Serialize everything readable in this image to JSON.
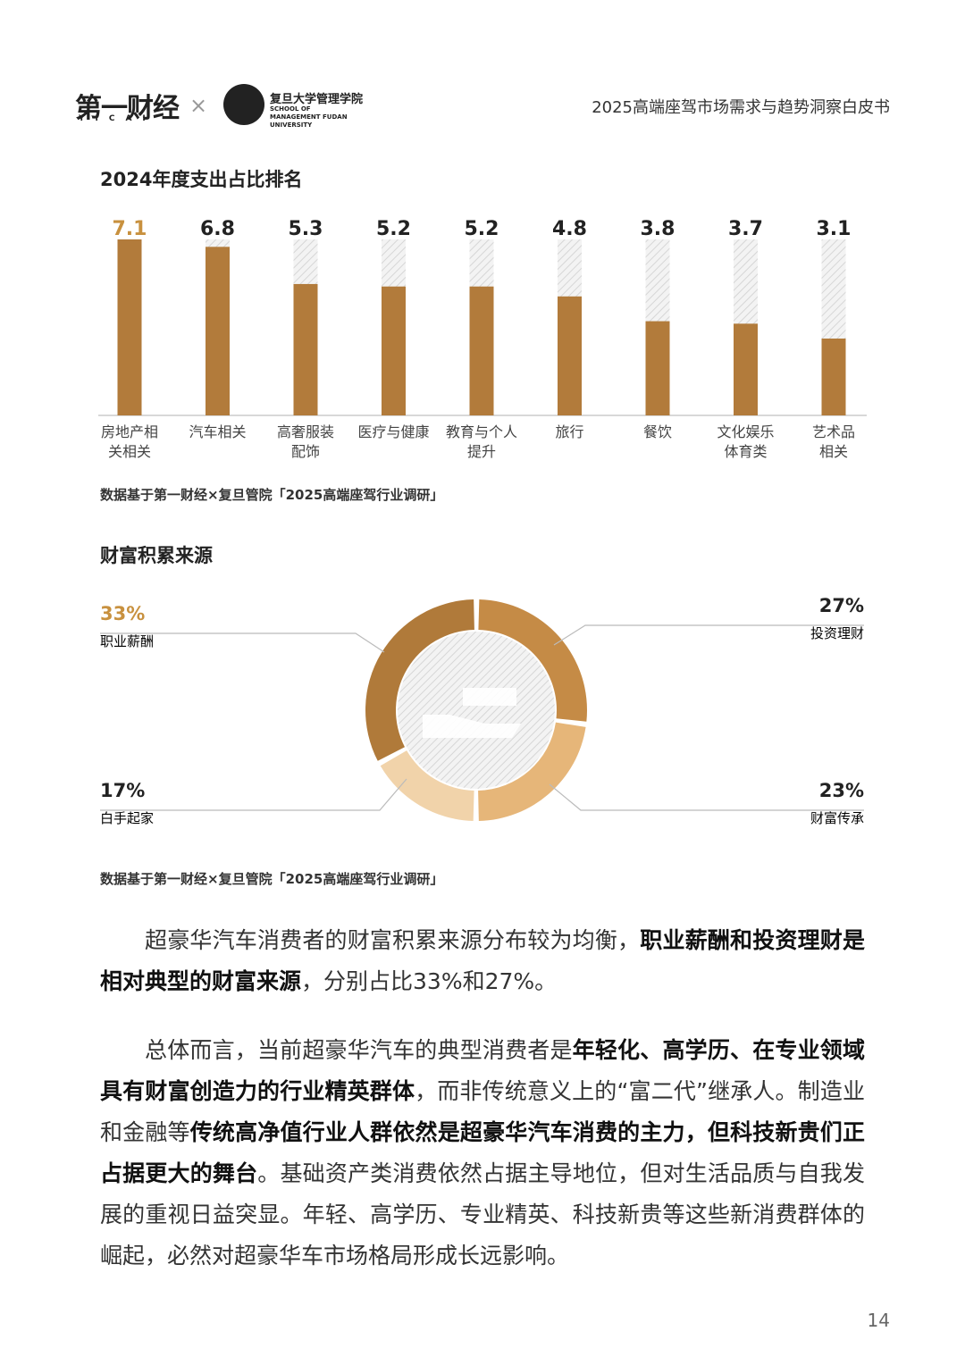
{
  "header": {
    "logo_main": "第一财经",
    "logo_sub": "YICAI",
    "cross": "×",
    "school_cn": "复旦大学管理学院",
    "school_en": "SCHOOL OF MANAGEMENT FUDAN UNIVERSITY",
    "title": "2025高端座驾市场需求与趋势洞察白皮书"
  },
  "chart_data": [
    {
      "type": "bar",
      "title": "2024年度支出占比排名",
      "categories": [
        "房地产相\n关相关",
        "汽车相关",
        "高奢服装\n配饰",
        "医疗与健康",
        "教育与个人\n提升",
        "旅行",
        "餐饮",
        "文化娱乐\n体育类",
        "艺术品\n相关"
      ],
      "values": [
        7.1,
        6.8,
        5.3,
        5.2,
        5.2,
        4.8,
        3.8,
        3.7,
        3.1
      ],
      "color": "#b27b3b",
      "highlight_color": "#c8913f",
      "ylim": [
        0,
        7.1
      ],
      "source": "数据基于第一财经×复旦管院「2025高端座驾行业调研」"
    },
    {
      "type": "pie",
      "title": "财富积累来源",
      "series": [
        {
          "name": "投资理财",
          "value": 27,
          "value_label": "27%",
          "color": "#c58b46"
        },
        {
          "name": "财富传承",
          "value": 23,
          "value_label": "23%",
          "color": "#e6b679"
        },
        {
          "name": "白手起家",
          "value": 17,
          "value_label": "17%",
          "color": "#f1d3aa"
        },
        {
          "name": "职业薪酬",
          "value": 33,
          "value_label": "33%",
          "color": "#b07a3a"
        }
      ],
      "highlight_color": "#c8913f",
      "source": "数据基于第一财经×复旦管院「2025高端座驾行业调研」"
    }
  ],
  "paragraphs": [
    {
      "runs": [
        {
          "text": "超豪华汽车消费者的财富积累来源分布较为均衡，",
          "bold": false
        },
        {
          "text": "职业薪酬和投资理财是相对典型的财富来源",
          "bold": true
        },
        {
          "text": "，分别占比33%和27%。",
          "bold": false
        }
      ]
    },
    {
      "runs": [
        {
          "text": "总体而言，当前超豪华汽车的典型消费者是",
          "bold": false
        },
        {
          "text": "年轻化、高学历、在专业领域具有财富创造力的行业精英群体",
          "bold": true
        },
        {
          "text": "，而非传统意义上的“富二代”继承人。制造业和金融等",
          "bold": false
        },
        {
          "text": "传统高净值行业人群依然是超豪华汽车消费的主力，但科技新贵们正占据更大的舞台",
          "bold": true
        },
        {
          "text": "。基础资产类消费依然占据主导地位，但对生活品质与自我发展的重视日益突显。年轻、高学历、专业精英、科技新贵等这些新消费群体的崛起，必然对超豪华车市场格局形成长远影响。",
          "bold": false
        }
      ]
    }
  ],
  "page_number": "14"
}
